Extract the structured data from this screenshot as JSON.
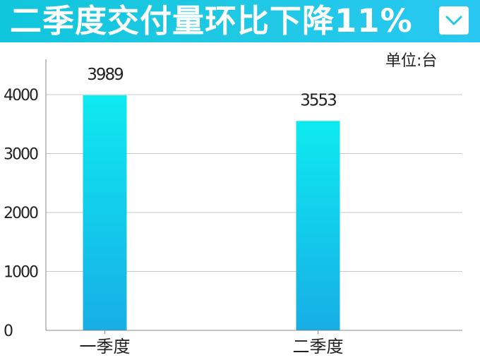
{
  "header": {
    "title": "二季度交付量环比下降11%"
  },
  "unit_label": "单位:台",
  "colors": {
    "banner": "#1ec8e2",
    "bar_top": "#0eeaf0",
    "bar_bottom": "#17aee6",
    "grid": "#c8c8c8",
    "axis": "#888888"
  },
  "chart_data": {
    "type": "bar",
    "title": "",
    "xlabel": "",
    "ylabel": "",
    "categories": [
      "一季度",
      "二季度"
    ],
    "values": [
      3989,
      3553
    ],
    "data_labels": [
      "3989",
      "3553"
    ],
    "yticks": [
      0,
      1000,
      2000,
      3000,
      4000
    ],
    "ytick_labels": [
      "0",
      "1000",
      "2000",
      "3000",
      "4000"
    ],
    "ylim": [
      0,
      4000
    ],
    "grid": true
  }
}
